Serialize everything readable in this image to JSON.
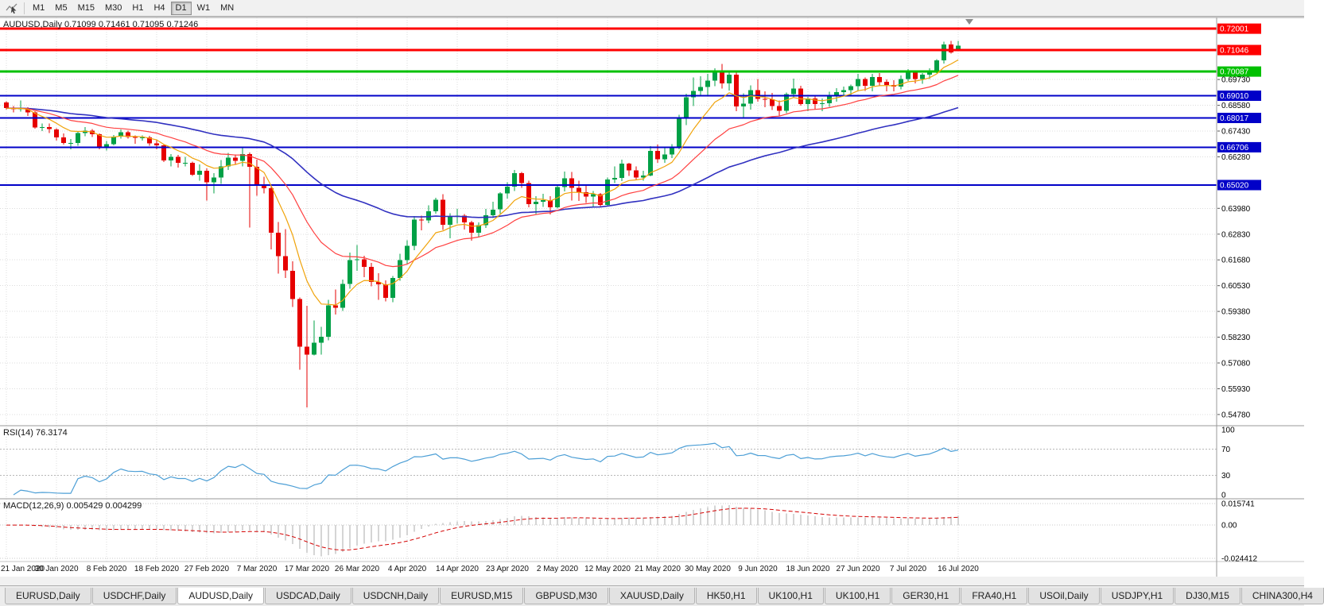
{
  "toolbar": {
    "icon": "chart-cursor-icon",
    "timeframes": [
      {
        "label": "M1",
        "active": false
      },
      {
        "label": "M5",
        "active": false
      },
      {
        "label": "M15",
        "active": false
      },
      {
        "label": "M30",
        "active": false
      },
      {
        "label": "H1",
        "active": false
      },
      {
        "label": "H4",
        "active": false
      },
      {
        "label": "D1",
        "active": true
      },
      {
        "label": "W1",
        "active": false
      },
      {
        "label": "MN",
        "active": false
      }
    ]
  },
  "chart_data": {
    "type": "candlestick",
    "symbol": "AUDUSD",
    "timeframe": "Daily",
    "title": "AUDUSD,Daily 0.71099 0.71461 0.71095 0.71246",
    "ohlc": {
      "open": "0.71099",
      "high": "0.71461",
      "low": "0.71095",
      "close": "0.71246"
    },
    "price": {
      "ylim": [
        0.5435,
        0.725
      ],
      "y_tick_labels": [
        "0.69730",
        "0.68580",
        "0.67430",
        "0.66280",
        "0.63980",
        "0.62830",
        "0.61680",
        "0.60530",
        "0.59380",
        "0.58230",
        "0.57080",
        "0.55930",
        "0.54780"
      ],
      "colors": {
        "up": "#00A046",
        "down": "#E60000",
        "grid": "#DCDCDC"
      },
      "shift_marker_icon": "chart-shift-marker-icon",
      "hlines": [
        {
          "price": 0.72001,
          "label": "0.72001",
          "color": "#FF0000",
          "width": 3
        },
        {
          "price": 0.71046,
          "label": "0.71046",
          "color": "#FF0000",
          "width": 3
        },
        {
          "price": 0.70087,
          "label": "0.70087",
          "color": "#00C000",
          "width": 3
        },
        {
          "price": 0.6901,
          "label": "0.69010",
          "color": "#0000C8",
          "width": 2
        },
        {
          "price": 0.68017,
          "label": "0.68017",
          "color": "#0000C8",
          "width": 2
        },
        {
          "price": 0.66706,
          "label": "0.66706",
          "color": "#0000C8",
          "width": 2
        },
        {
          "price": 0.6502,
          "label": "0.65020",
          "color": "#0000C8",
          "width": 2
        }
      ],
      "moving_averages": [
        {
          "period": 8,
          "method": "ema",
          "color": "#F0A30A"
        },
        {
          "period": 21,
          "method": "ema",
          "color": "#FF4040"
        },
        {
          "period": 55,
          "method": "ema",
          "color": "#3030C0"
        }
      ],
      "candles": [
        [
          0.6871,
          0.6876,
          0.6838,
          0.6845
        ],
        [
          0.6845,
          0.6855,
          0.6827,
          0.684
        ],
        [
          0.684,
          0.6879,
          0.683,
          0.6845
        ],
        [
          0.6845,
          0.685,
          0.681,
          0.6827
        ],
        [
          0.6827,
          0.6832,
          0.6753,
          0.6759
        ],
        [
          0.6759,
          0.6777,
          0.6743,
          0.676
        ],
        [
          0.676,
          0.6776,
          0.6735,
          0.6751
        ],
        [
          0.6751,
          0.6755,
          0.6701,
          0.6715
        ],
        [
          0.6715,
          0.6733,
          0.6682,
          0.669
        ],
        [
          0.669,
          0.6707,
          0.6662,
          0.669
        ],
        [
          0.669,
          0.674,
          0.6678,
          0.6735
        ],
        [
          0.6735,
          0.676,
          0.672,
          0.6745
        ],
        [
          0.6745,
          0.6752,
          0.6717,
          0.6729
        ],
        [
          0.6729,
          0.6733,
          0.6662,
          0.6672
        ],
        [
          0.6672,
          0.6698,
          0.6657,
          0.6685
        ],
        [
          0.6685,
          0.6726,
          0.668,
          0.6718
        ],
        [
          0.6718,
          0.675,
          0.671,
          0.6738
        ],
        [
          0.6738,
          0.6745,
          0.671,
          0.6717
        ],
        [
          0.6717,
          0.6723,
          0.6686,
          0.6713
        ],
        [
          0.6713,
          0.6723,
          0.67,
          0.6714
        ],
        [
          0.6714,
          0.6722,
          0.6678,
          0.6688
        ],
        [
          0.6688,
          0.6702,
          0.6661,
          0.6679
        ],
        [
          0.6679,
          0.6683,
          0.6605,
          0.6612
        ],
        [
          0.6612,
          0.664,
          0.6585,
          0.6627
        ],
        [
          0.6627,
          0.6637,
          0.658,
          0.6601
        ],
        [
          0.6601,
          0.6627,
          0.6585,
          0.6601
        ],
        [
          0.6601,
          0.6606,
          0.6542,
          0.6549
        ],
        [
          0.6549,
          0.6595,
          0.6521,
          0.6566
        ],
        [
          0.6566,
          0.6577,
          0.6433,
          0.6515
        ],
        [
          0.6515,
          0.6556,
          0.6464,
          0.6536
        ],
        [
          0.6536,
          0.6613,
          0.6507,
          0.6585
        ],
        [
          0.6585,
          0.6646,
          0.657,
          0.6624
        ],
        [
          0.6624,
          0.6639,
          0.6592,
          0.661
        ],
        [
          0.661,
          0.6672,
          0.6586,
          0.664
        ],
        [
          0.664,
          0.6648,
          0.6313,
          0.6584
        ],
        [
          0.6584,
          0.6616,
          0.6454,
          0.6505
        ],
        [
          0.6505,
          0.6539,
          0.6464,
          0.6488
        ],
        [
          0.6488,
          0.6503,
          0.6214,
          0.629
        ],
        [
          0.629,
          0.6337,
          0.6107,
          0.6185
        ],
        [
          0.6185,
          0.6305,
          0.6088,
          0.612
        ],
        [
          0.612,
          0.6161,
          0.5958,
          0.5994
        ],
        [
          0.5994,
          0.6,
          0.5678,
          0.578
        ],
        [
          0.578,
          0.5963,
          0.551,
          0.5745
        ],
        [
          0.5745,
          0.5898,
          0.5741,
          0.5798
        ],
        [
          0.5798,
          0.587,
          0.5745,
          0.5825
        ],
        [
          0.5825,
          0.599,
          0.5809,
          0.5965
        ],
        [
          0.5965,
          0.6035,
          0.5925,
          0.5955
        ],
        [
          0.5955,
          0.608,
          0.594,
          0.606
        ],
        [
          0.606,
          0.62,
          0.604,
          0.6167
        ],
        [
          0.6167,
          0.6234,
          0.612,
          0.617
        ],
        [
          0.617,
          0.6186,
          0.609,
          0.6137
        ],
        [
          0.6137,
          0.6155,
          0.605,
          0.607
        ],
        [
          0.607,
          0.6108,
          0.599,
          0.6059
        ],
        [
          0.6059,
          0.6076,
          0.5982,
          0.5998
        ],
        [
          0.5998,
          0.6096,
          0.598,
          0.6087
        ],
        [
          0.6087,
          0.6196,
          0.6075,
          0.6167
        ],
        [
          0.6167,
          0.6255,
          0.615,
          0.6231
        ],
        [
          0.6231,
          0.6364,
          0.6211,
          0.6348
        ],
        [
          0.6348,
          0.6365,
          0.63,
          0.6345
        ],
        [
          0.6345,
          0.6412,
          0.6332,
          0.6385
        ],
        [
          0.6385,
          0.6445,
          0.6375,
          0.6436
        ],
        [
          0.6436,
          0.6461,
          0.6302,
          0.6324
        ],
        [
          0.6324,
          0.6377,
          0.6265,
          0.6364
        ],
        [
          0.6364,
          0.6395,
          0.633,
          0.6365
        ],
        [
          0.6365,
          0.6372,
          0.6303,
          0.6336
        ],
        [
          0.6336,
          0.6342,
          0.6253,
          0.629
        ],
        [
          0.629,
          0.6335,
          0.6268,
          0.6323
        ],
        [
          0.6323,
          0.6395,
          0.631,
          0.6368
        ],
        [
          0.6368,
          0.6428,
          0.6355,
          0.6393
        ],
        [
          0.6393,
          0.6471,
          0.6374,
          0.6464
        ],
        [
          0.6464,
          0.6515,
          0.6441,
          0.6495
        ],
        [
          0.6495,
          0.657,
          0.6476,
          0.6555
        ],
        [
          0.6555,
          0.6561,
          0.6489,
          0.6511
        ],
        [
          0.6511,
          0.6522,
          0.6402,
          0.6417
        ],
        [
          0.6417,
          0.6453,
          0.6372,
          0.6428
        ],
        [
          0.6428,
          0.6463,
          0.6404,
          0.6435
        ],
        [
          0.6435,
          0.6453,
          0.6371,
          0.6403
        ],
        [
          0.6403,
          0.6505,
          0.6398,
          0.6493
        ],
        [
          0.6493,
          0.6562,
          0.6474,
          0.6532
        ],
        [
          0.6532,
          0.6561,
          0.6433,
          0.6489
        ],
        [
          0.6489,
          0.6522,
          0.6432,
          0.647
        ],
        [
          0.647,
          0.6504,
          0.6422,
          0.645
        ],
        [
          0.645,
          0.6475,
          0.6403,
          0.6462
        ],
        [
          0.6462,
          0.6467,
          0.6402,
          0.6413
        ],
        [
          0.6413,
          0.6536,
          0.641,
          0.6527
        ],
        [
          0.6527,
          0.6585,
          0.651,
          0.6534
        ],
        [
          0.6534,
          0.6616,
          0.652,
          0.6598
        ],
        [
          0.6598,
          0.6601,
          0.6542,
          0.6567
        ],
        [
          0.6567,
          0.6585,
          0.6525,
          0.6536
        ],
        [
          0.6536,
          0.6565,
          0.6522,
          0.6545
        ],
        [
          0.6545,
          0.6675,
          0.6541,
          0.6654
        ],
        [
          0.6654,
          0.6682,
          0.6602,
          0.6617
        ],
        [
          0.6617,
          0.6666,
          0.6601,
          0.6638
        ],
        [
          0.6638,
          0.6684,
          0.6623,
          0.6667
        ],
        [
          0.6667,
          0.6815,
          0.6662,
          0.6798
        ],
        [
          0.6798,
          0.691,
          0.677,
          0.6894
        ],
        [
          0.6894,
          0.6983,
          0.6855,
          0.6922
        ],
        [
          0.6922,
          0.6988,
          0.6902,
          0.694
        ],
        [
          0.694,
          0.6998,
          0.6901,
          0.6968
        ],
        [
          0.6968,
          0.7023,
          0.6944,
          0.7013
        ],
        [
          0.7013,
          0.7042,
          0.6932,
          0.6956
        ],
        [
          0.6956,
          0.7012,
          0.6923,
          0.6995
        ],
        [
          0.6995,
          0.7004,
          0.6832,
          0.6852
        ],
        [
          0.6852,
          0.6912,
          0.68,
          0.6866
        ],
        [
          0.6866,
          0.6947,
          0.6838,
          0.6926
        ],
        [
          0.6926,
          0.6976,
          0.6874,
          0.6886
        ],
        [
          0.6886,
          0.6921,
          0.6849,
          0.6884
        ],
        [
          0.6884,
          0.6913,
          0.6837,
          0.6854
        ],
        [
          0.6854,
          0.688,
          0.6808,
          0.6834
        ],
        [
          0.6834,
          0.6915,
          0.6823,
          0.6908
        ],
        [
          0.6908,
          0.6977,
          0.689,
          0.6932
        ],
        [
          0.6932,
          0.6945,
          0.6856,
          0.6864
        ],
        [
          0.6864,
          0.6896,
          0.6832,
          0.6888
        ],
        [
          0.6888,
          0.6899,
          0.6841,
          0.6864
        ],
        [
          0.6864,
          0.6889,
          0.6832,
          0.6868
        ],
        [
          0.6868,
          0.6918,
          0.6852,
          0.6902
        ],
        [
          0.6902,
          0.6934,
          0.6874,
          0.6917
        ],
        [
          0.6917,
          0.6941,
          0.6902,
          0.6925
        ],
        [
          0.6925,
          0.695,
          0.6901,
          0.6943
        ],
        [
          0.6943,
          0.6998,
          0.6923,
          0.6975
        ],
        [
          0.6975,
          0.6983,
          0.6922,
          0.6945
        ],
        [
          0.6945,
          0.6999,
          0.6921,
          0.6985
        ],
        [
          0.6985,
          0.7001,
          0.6943,
          0.6962
        ],
        [
          0.6962,
          0.6974,
          0.6921,
          0.6948
        ],
        [
          0.6948,
          0.697,
          0.692,
          0.6941
        ],
        [
          0.6941,
          0.6992,
          0.693,
          0.6975
        ],
        [
          0.6975,
          0.7019,
          0.6967,
          0.7004
        ],
        [
          0.7004,
          0.7012,
          0.6955,
          0.6976
        ],
        [
          0.6976,
          0.7002,
          0.6954,
          0.6995
        ],
        [
          0.6995,
          0.7024,
          0.6975,
          0.7011
        ],
        [
          0.7011,
          0.7064,
          0.7001,
          0.7058
        ],
        [
          0.7058,
          0.7141,
          0.7044,
          0.713
        ],
        [
          0.713,
          0.7146,
          0.7089,
          0.7095
        ],
        [
          0.71099,
          0.71461,
          0.71095,
          0.71246
        ]
      ]
    },
    "x_axis": {
      "bars_per_label": 7,
      "labels": [
        "21 Jan 2020",
        "30 Jan 2020",
        "8 Feb 2020",
        "18 Feb 2020",
        "27 Feb 2020",
        "7 Mar 2020",
        "17 Mar 2020",
        "26 Mar 2020",
        "4 Apr 2020",
        "14 Apr 2020",
        "23 Apr 2020",
        "2 May 2020",
        "12 May 2020",
        "21 May 2020",
        "30 May 2020",
        "9 Jun 2020",
        "18 Jun 2020",
        "27 Jun 2020",
        "7 Jul 2020",
        "16 Jul 2020"
      ]
    },
    "rsi": {
      "label": "RSI(14) 76.3174",
      "period": 14,
      "value": "76.3174",
      "tick_labels": [
        "100",
        "70",
        "30",
        "0"
      ],
      "dotted_levels": [
        70,
        30
      ],
      "color": "#4D9FD6"
    },
    "macd": {
      "label": "MACD(12,26,9) 0.005429 0.004299",
      "fast": 12,
      "slow": 26,
      "signal_period": 9,
      "values": [
        "0.005429",
        "0.004299"
      ],
      "tick_labels": [
        "0.015741",
        "0.00",
        "-0.024412"
      ],
      "ylim": [
        -0.0255,
        0.0175
      ],
      "histogram_color": "#ABABAB",
      "signal_color": "#D40000"
    }
  },
  "tabs": {
    "items": [
      {
        "label": "EURUSD,Daily",
        "active": false
      },
      {
        "label": "USDCHF,Daily",
        "active": false
      },
      {
        "label": "AUDUSD,Daily",
        "active": true
      },
      {
        "label": "USDCAD,Daily",
        "active": false
      },
      {
        "label": "USDCNH,Daily",
        "active": false
      },
      {
        "label": "EURUSD,M15",
        "active": false
      },
      {
        "label": "GBPUSD,M30",
        "active": false
      },
      {
        "label": "XAUUSD,Daily",
        "active": false
      },
      {
        "label": "HK50,H1",
        "active": false
      },
      {
        "label": "UK100,H1",
        "active": false
      },
      {
        "label": "UK100,H1",
        "active": false
      },
      {
        "label": "GER30,H1",
        "active": false
      },
      {
        "label": "FRA40,H1",
        "active": false
      },
      {
        "label": "USOil,Daily",
        "active": false
      },
      {
        "label": "USDJPY,H1",
        "active": false
      },
      {
        "label": "DJ30,M15",
        "active": false
      },
      {
        "label": "CHINA300,H4",
        "active": false
      }
    ]
  }
}
